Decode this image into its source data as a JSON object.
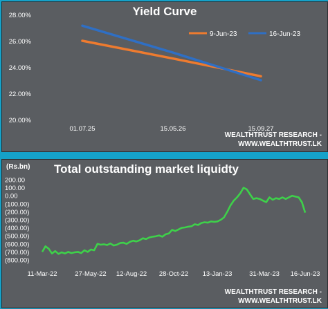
{
  "brand": {
    "credit_line1": "WEALTHTRUST RESEARCH -",
    "credit_line2": "WWW.WEALTHTRUST.LK"
  },
  "colors": {
    "background": "#15a2c9",
    "panel": "#5a5d61",
    "series_9jun": "#ee7b2f",
    "series_16jun": "#2f6fc4",
    "liquidity": "#3ed14a"
  },
  "chart_data": [
    {
      "type": "line",
      "title": "Yield Curve",
      "categories": [
        "01.07.25",
        "15.05.26",
        "15.09.27"
      ],
      "ylim": [
        20,
        28
      ],
      "yticks": [
        "20.00%",
        "22.00%",
        "24.00%",
        "26.00%",
        "28.00%"
      ],
      "grid": false,
      "legend": "top-right",
      "series": [
        {
          "name": "9-Jun-23",
          "values": [
            26.0,
            24.65,
            23.3
          ]
        },
        {
          "name": "16-Jun-23",
          "values": [
            27.15,
            25.1,
            23.0
          ]
        }
      ]
    },
    {
      "type": "line",
      "title": "Total outstanding market liquidty",
      "ylabel": "(Rs.bn)",
      "ylim": [
        -800,
        200
      ],
      "yticks": [
        "200.00",
        "100.00",
        "0.00",
        "(100.00)",
        "(200.00)",
        "(300.00)",
        "(400.00)",
        "(500.00)",
        "(600.00)",
        "(700.00)",
        "(800.00)"
      ],
      "xticks": [
        "11-Mar-22",
        "27-May-22",
        "12-Aug-22",
        "28-Oct-22",
        "13-Jan-23",
        "31-Mar-23",
        "16-Jun-23"
      ],
      "grid": false,
      "series": [
        {
          "name": "",
          "values": [
            -700,
            -630,
            -660,
            -720,
            -690,
            -725,
            -705,
            -720,
            -700,
            -715,
            -705,
            -700,
            -715,
            -680,
            -700,
            -670,
            -680,
            -600,
            -610,
            -605,
            -615,
            -595,
            -620,
            -610,
            -590,
            -585,
            -600,
            -575,
            -560,
            -570,
            -555,
            -530,
            -540,
            -520,
            -510,
            -505,
            -495,
            -510,
            -480,
            -470,
            -425,
            -440,
            -420,
            -400,
            -395,
            -385,
            -380,
            -355,
            -365,
            -340,
            -330,
            -335,
            -320,
            -325,
            -320,
            -300,
            -270,
            -200,
            -120,
            -60,
            -20,
            30,
            100,
            80,
            20,
            -40,
            -30,
            -40,
            -60,
            -80,
            -20,
            -50,
            -30,
            -40,
            -20,
            -40,
            -20,
            0,
            -10,
            -20,
            -80,
            -210
          ]
        }
      ]
    }
  ]
}
